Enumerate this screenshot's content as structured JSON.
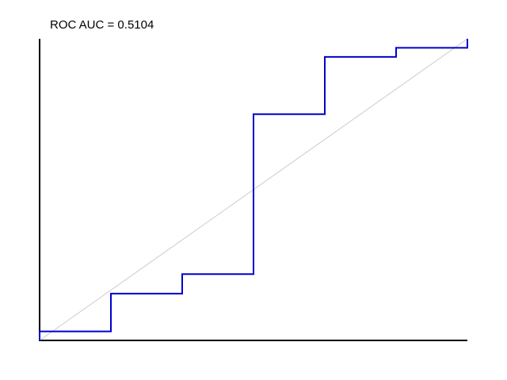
{
  "chart_data": {
    "type": "line",
    "title": "ROC AUC = 0.5104",
    "xlabel": "",
    "ylabel": "",
    "xlim": [
      0,
      1
    ],
    "ylim": [
      0,
      1
    ],
    "grid": false,
    "legend": "none",
    "series": [
      {
        "style": "step",
        "color": "#0000cc",
        "points": [
          [
            0.0,
            0.0
          ],
          [
            0.0,
            0.03
          ],
          [
            0.1667,
            0.03
          ],
          [
            0.1667,
            0.155
          ],
          [
            0.3333,
            0.155
          ],
          [
            0.3333,
            0.22
          ],
          [
            0.5,
            0.22
          ],
          [
            0.5,
            0.75
          ],
          [
            0.6667,
            0.75
          ],
          [
            0.6667,
            0.94
          ],
          [
            0.8333,
            0.94
          ],
          [
            0.8333,
            0.97
          ],
          [
            1.0,
            0.97
          ],
          [
            1.0,
            1.0
          ]
        ]
      },
      {
        "style": "reference",
        "color": "#cccccc",
        "points": [
          [
            0.0,
            0.0
          ],
          [
            1.0,
            1.0
          ]
        ]
      }
    ]
  }
}
